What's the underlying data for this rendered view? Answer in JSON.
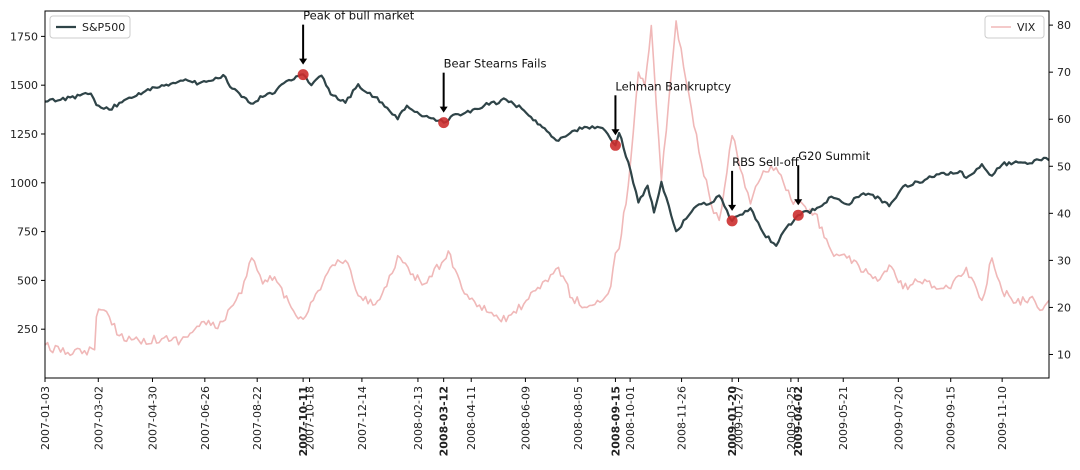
{
  "chart_data": {
    "type": "line",
    "title": "",
    "xlabel": "",
    "ylabel_left": "",
    "ylabel_right": "",
    "x_range": [
      "2007-01-03",
      "2009-12-31"
    ],
    "ylim_left": [
      0,
      1880
    ],
    "ylim_right": [
      5,
      83
    ],
    "grid": false,
    "colors": {
      "sp500": "#2f4448",
      "vix": "#f0b8b8",
      "event_marker": "#cc2f2f",
      "event_label": "#cc2f2f",
      "arrow": "#000000",
      "axes": "#000000"
    },
    "left_yticks": [
      250,
      500,
      750,
      1000,
      1250,
      1500,
      1750
    ],
    "right_yticks": [
      10,
      20,
      30,
      40,
      50,
      60,
      70,
      80
    ],
    "xticks": [
      "2007-01-03",
      "2007-03-02",
      "2007-04-30",
      "2007-06-26",
      "2007-08-22",
      "2007-10-18",
      "2007-12-14",
      "2008-02-13",
      "2008-04-11",
      "2008-06-09",
      "2008-08-05",
      "2008-10-01",
      "2008-11-26",
      "2009-01-27",
      "2009-03-25",
      "2009-05-21",
      "2009-07-20",
      "2009-09-15",
      "2009-11-10"
    ],
    "legend": [
      {
        "label": "S&P500",
        "position": "top-left"
      },
      {
        "label": "VIX",
        "position": "top-right"
      }
    ],
    "series": [
      {
        "name": "S&P500",
        "axis": "left",
        "points": [
          [
            "2007-01-03",
            1416
          ],
          [
            "2007-01-20",
            1425
          ],
          [
            "2007-02-10",
            1447
          ],
          [
            "2007-02-22",
            1457
          ],
          [
            "2007-02-28",
            1398
          ],
          [
            "2007-03-05",
            1385
          ],
          [
            "2007-03-14",
            1375
          ],
          [
            "2007-03-25",
            1410
          ],
          [
            "2007-04-10",
            1440
          ],
          [
            "2007-04-25",
            1480
          ],
          [
            "2007-05-10",
            1500
          ],
          [
            "2007-05-25",
            1510
          ],
          [
            "2007-06-05",
            1530
          ],
          [
            "2007-06-20",
            1510
          ],
          [
            "2007-07-05",
            1525
          ],
          [
            "2007-07-16",
            1552
          ],
          [
            "2007-07-26",
            1482
          ],
          [
            "2007-08-05",
            1440
          ],
          [
            "2007-08-15",
            1406
          ],
          [
            "2007-08-28",
            1440
          ],
          [
            "2007-09-10",
            1460
          ],
          [
            "2007-09-20",
            1510
          ],
          [
            "2007-10-01",
            1530
          ],
          [
            "2007-10-11",
            1555
          ],
          [
            "2007-10-20",
            1500
          ],
          [
            "2007-10-31",
            1549
          ],
          [
            "2007-11-10",
            1453
          ],
          [
            "2007-11-26",
            1410
          ],
          [
            "2007-12-10",
            1505
          ],
          [
            "2007-12-20",
            1460
          ],
          [
            "2008-01-05",
            1411
          ],
          [
            "2008-01-22",
            1325
          ],
          [
            "2008-02-01",
            1395
          ],
          [
            "2008-02-15",
            1350
          ],
          [
            "2008-03-01",
            1330
          ],
          [
            "2008-03-12",
            1308
          ],
          [
            "2008-03-25",
            1352
          ],
          [
            "2008-04-10",
            1360
          ],
          [
            "2008-04-25",
            1395
          ],
          [
            "2008-05-19",
            1426
          ],
          [
            "2008-06-05",
            1380
          ],
          [
            "2008-06-20",
            1320
          ],
          [
            "2008-07-05",
            1255
          ],
          [
            "2008-07-15",
            1215
          ],
          [
            "2008-07-30",
            1265
          ],
          [
            "2008-08-15",
            1285
          ],
          [
            "2008-09-01",
            1280
          ],
          [
            "2008-09-15",
            1192
          ],
          [
            "2008-09-19",
            1255
          ],
          [
            "2008-09-29",
            1106
          ],
          [
            "2008-10-10",
            899
          ],
          [
            "2008-10-20",
            985
          ],
          [
            "2008-10-27",
            848
          ],
          [
            "2008-11-04",
            1005
          ],
          [
            "2008-11-20",
            752
          ],
          [
            "2008-12-01",
            816
          ],
          [
            "2008-12-15",
            890
          ],
          [
            "2008-12-31",
            903
          ],
          [
            "2009-01-06",
            935
          ],
          [
            "2009-01-20",
            805
          ],
          [
            "2009-02-09",
            870
          ],
          [
            "2009-02-23",
            743
          ],
          [
            "2009-03-09",
            677
          ],
          [
            "2009-03-20",
            770
          ],
          [
            "2009-04-02",
            834
          ],
          [
            "2009-04-20",
            860
          ],
          [
            "2009-05-08",
            929
          ],
          [
            "2009-05-25",
            890
          ],
          [
            "2009-06-12",
            946
          ],
          [
            "2009-06-30",
            919
          ],
          [
            "2009-07-10",
            880
          ],
          [
            "2009-07-25",
            980
          ],
          [
            "2009-08-10",
            1005
          ],
          [
            "2009-08-28",
            1030
          ],
          [
            "2009-09-15",
            1055
          ],
          [
            "2009-09-25",
            1060
          ],
          [
            "2009-10-02",
            1025
          ],
          [
            "2009-10-19",
            1095
          ],
          [
            "2009-10-30",
            1036
          ],
          [
            "2009-11-10",
            1093
          ],
          [
            "2009-11-25",
            1110
          ],
          [
            "2009-12-10",
            1100
          ],
          [
            "2009-12-28",
            1127
          ],
          [
            "2009-12-31",
            1115
          ]
        ]
      },
      {
        "name": "VIX",
        "axis": "right",
        "points": [
          [
            "2007-01-03",
            12.0
          ],
          [
            "2007-01-20",
            10.5
          ],
          [
            "2007-02-15",
            10.8
          ],
          [
            "2007-02-26",
            11.0
          ],
          [
            "2007-02-28",
            18.0
          ],
          [
            "2007-03-05",
            19.5
          ],
          [
            "2007-03-14",
            18.0
          ],
          [
            "2007-03-25",
            14.0
          ],
          [
            "2007-04-15",
            13.0
          ],
          [
            "2007-05-10",
            13.3
          ],
          [
            "2007-05-31",
            13.0
          ],
          [
            "2007-06-10",
            14.5
          ],
          [
            "2007-06-25",
            17.0
          ],
          [
            "2007-07-10",
            15.5
          ],
          [
            "2007-07-24",
            20.0
          ],
          [
            "2007-08-05",
            23.0
          ],
          [
            "2007-08-16",
            30.5
          ],
          [
            "2007-08-28",
            25.0
          ],
          [
            "2007-09-10",
            26.5
          ],
          [
            "2007-09-28",
            20.0
          ],
          [
            "2007-10-11",
            17.5
          ],
          [
            "2007-10-22",
            21.5
          ],
          [
            "2007-11-12",
            29.0
          ],
          [
            "2007-11-26",
            30.0
          ],
          [
            "2007-12-10",
            22.5
          ],
          [
            "2007-12-26",
            20.5
          ],
          [
            "2008-01-10",
            24.5
          ],
          [
            "2008-01-22",
            31.0
          ],
          [
            "2008-02-05",
            27.0
          ],
          [
            "2008-02-20",
            25.0
          ],
          [
            "2008-03-10",
            29.5
          ],
          [
            "2008-03-17",
            32.0
          ],
          [
            "2008-04-01",
            24.0
          ],
          [
            "2008-04-20",
            20.5
          ],
          [
            "2008-05-19",
            17.0
          ],
          [
            "2008-06-10",
            21.5
          ],
          [
            "2008-06-25",
            24.0
          ],
          [
            "2008-07-15",
            28.5
          ],
          [
            "2008-07-30",
            22.0
          ],
          [
            "2008-08-15",
            20.0
          ],
          [
            "2008-09-01",
            21.5
          ],
          [
            "2008-09-10",
            24.5
          ],
          [
            "2008-09-15",
            31.5
          ],
          [
            "2008-09-19",
            32.5
          ],
          [
            "2008-09-29",
            46.0
          ],
          [
            "2008-10-10",
            70.0
          ],
          [
            "2008-10-17",
            67.0
          ],
          [
            "2008-10-24",
            79.9
          ],
          [
            "2008-11-04",
            47.0
          ],
          [
            "2008-11-20",
            80.9
          ],
          [
            "2008-12-01",
            68.0
          ],
          [
            "2008-12-15",
            53.0
          ],
          [
            "2008-12-31",
            40.0
          ],
          [
            "2009-01-06",
            38.5
          ],
          [
            "2009-01-20",
            56.5
          ],
          [
            "2009-02-09",
            42.0
          ],
          [
            "2009-02-23",
            49.0
          ],
          [
            "2009-03-09",
            49.7
          ],
          [
            "2009-03-25",
            43.0
          ],
          [
            "2009-04-02",
            42.0
          ],
          [
            "2009-04-20",
            40.0
          ],
          [
            "2009-05-08",
            32.0
          ],
          [
            "2009-05-25",
            30.5
          ],
          [
            "2009-06-12",
            27.5
          ],
          [
            "2009-06-30",
            26.0
          ],
          [
            "2009-07-10",
            29.0
          ],
          [
            "2009-07-25",
            24.0
          ],
          [
            "2009-08-10",
            25.5
          ],
          [
            "2009-08-28",
            24.5
          ],
          [
            "2009-09-15",
            24.0
          ],
          [
            "2009-10-02",
            28.5
          ],
          [
            "2009-10-19",
            21.5
          ],
          [
            "2009-10-30",
            30.5
          ],
          [
            "2009-11-10",
            23.5
          ],
          [
            "2009-11-25",
            21.0
          ],
          [
            "2009-12-10",
            22.0
          ],
          [
            "2009-12-24",
            19.5
          ],
          [
            "2009-12-31",
            21.5
          ]
        ]
      }
    ],
    "events": [
      {
        "date": "2007-10-11",
        "label": "Peak of bull market",
        "value": 1554
      },
      {
        "date": "2008-03-12",
        "label": "Bear Stearns Fails",
        "value": 1308
      },
      {
        "date": "2008-09-15",
        "label": "Lehman Bankruptcy",
        "value": 1192
      },
      {
        "date": "2009-01-20",
        "label": "RBS Sell-off",
        "value": 805
      },
      {
        "date": "2009-04-02",
        "label": "G20 Summit",
        "value": 834
      }
    ]
  }
}
